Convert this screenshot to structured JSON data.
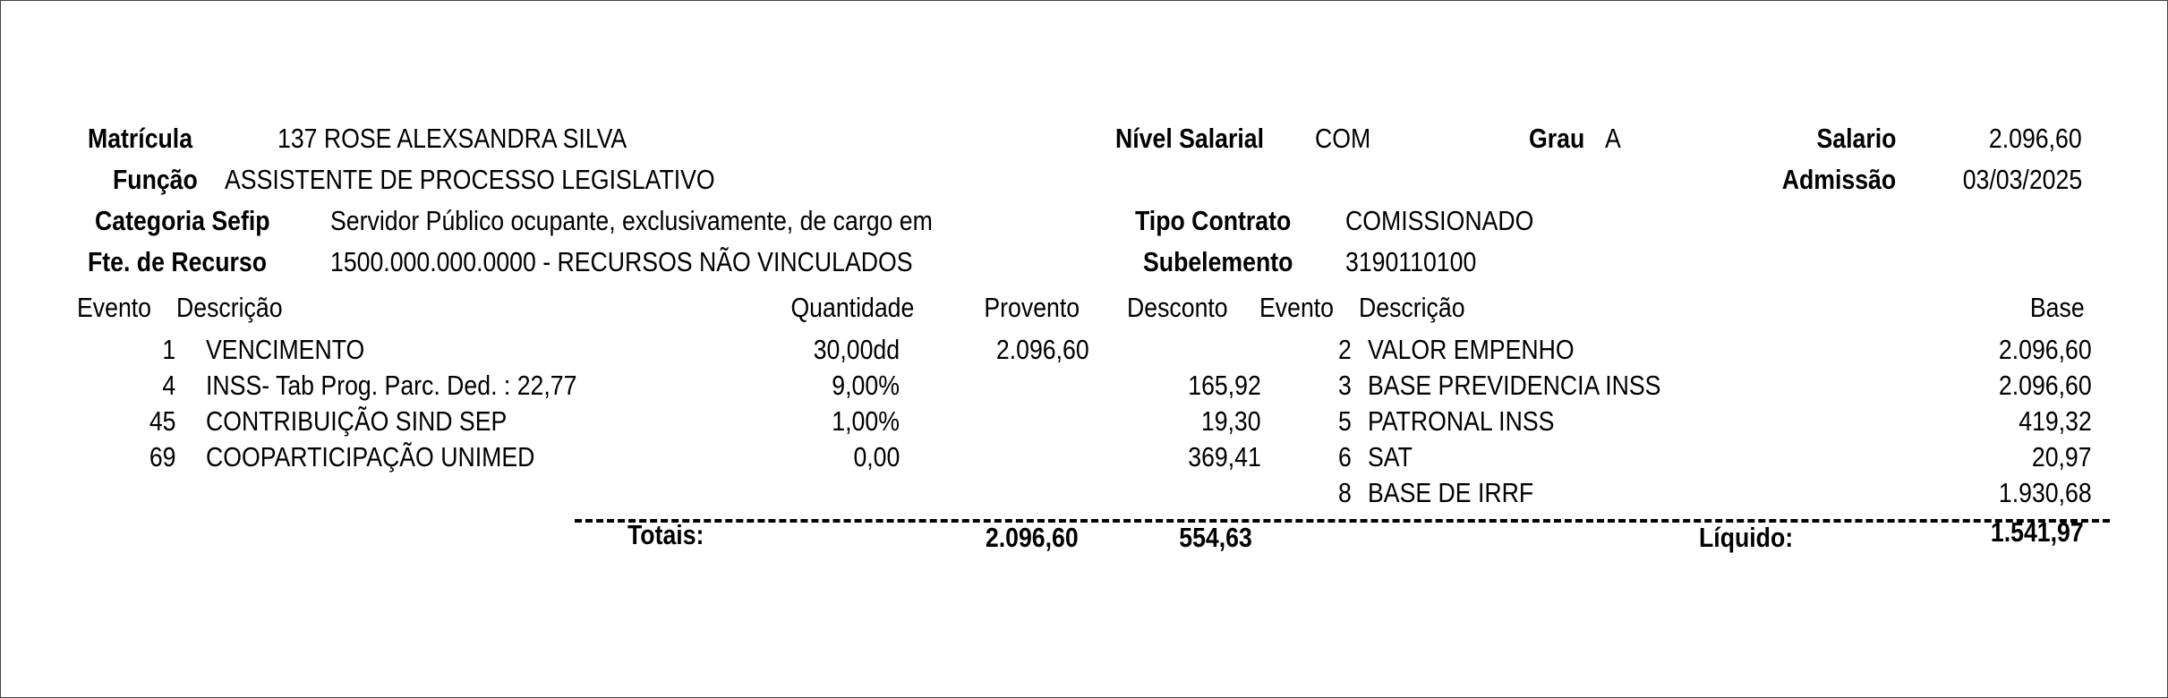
{
  "header": {
    "matricula_label": "Matrícula",
    "matricula_value": "137 ROSE ALEXSANDRA SILVA",
    "funcao_label": "Função",
    "funcao_value": "ASSISTENTE DE PROCESSO LEGISLATIVO",
    "categoria_label": "Categoria Sefip",
    "categoria_value": "Servidor Público ocupante, exclusivamente, de cargo em",
    "fonte_label": "Fte. de Recurso",
    "fonte_value": "1500.000.000.0000 - RECURSOS NÃO VINCULADOS",
    "nivel_label": "Nível Salarial",
    "nivel_value": "COM",
    "grau_label": "Grau",
    "grau_value": "A",
    "salario_label": "Salario",
    "salario_value": "2.096,60",
    "admissao_label": "Admissão",
    "admissao_value": "03/03/2025",
    "tipo_label": "Tipo Contrato",
    "tipo_value": "COMISSIONADO",
    "subelemento_label": "Subelemento",
    "subelemento_value": "3190110100"
  },
  "columns": {
    "evento": "Evento",
    "descricao": "Descrição",
    "quantidade": "Quantidade",
    "provento": "Provento",
    "desconto": "Desconto",
    "evento2": "Evento",
    "descricao2": "Descrição",
    "base": "Base"
  },
  "events": [
    {
      "code": "1",
      "desc": "VENCIMENTO",
      "qty": "30,00dd",
      "provento": "2.096,60",
      "desconto": ""
    },
    {
      "code": "4",
      "desc": "INSS- Tab Prog. Parc. Ded. : 22,77",
      "qty": "9,00%",
      "provento": "",
      "desconto": "165,92"
    },
    {
      "code": "45",
      "desc": "CONTRIBUIÇÃO SIND SEP",
      "qty": "1,00%",
      "provento": "",
      "desconto": "19,30"
    },
    {
      "code": "69",
      "desc": "COOPARTICIPAÇÃO UNIMED",
      "qty": "0,00",
      "provento": "",
      "desconto": "369,41"
    }
  ],
  "bases": [
    {
      "code": "2",
      "desc": "VALOR EMPENHO",
      "base": "2.096,60"
    },
    {
      "code": "3",
      "desc": "BASE PREVIDENCIA INSS",
      "base": "2.096,60"
    },
    {
      "code": "5",
      "desc": "PATRONAL INSS",
      "base": "419,32"
    },
    {
      "code": "6",
      "desc": "SAT",
      "base": "20,97"
    },
    {
      "code": "8",
      "desc": "BASE DE IRRF",
      "base": "1.930,68"
    }
  ],
  "totals": {
    "label": "Totais:",
    "provento": "2.096,60",
    "desconto": "554,63",
    "liquido_label": "Líquido:",
    "liquido": "1.541,97"
  }
}
